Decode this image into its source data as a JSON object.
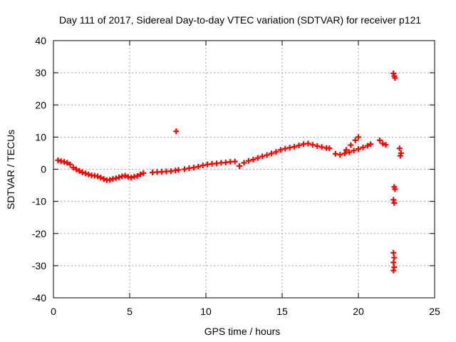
{
  "chart_data": {
    "type": "scatter",
    "title": "Day 111 of 2017, Sidereal Day-to-day VTEC variation (SDTVAR) for receiver p121",
    "xlabel": "GPS time / hours",
    "ylabel": "SDTVAR / TECUs",
    "xlim": [
      0,
      25
    ],
    "ylim": [
      -40,
      40
    ],
    "xticks": [
      0,
      5,
      10,
      15,
      20,
      25
    ],
    "yticks": [
      -40,
      -30,
      -20,
      -10,
      0,
      10,
      20,
      30,
      40
    ],
    "grid": true,
    "marker": "plus",
    "color": "#ff0000",
    "series": [
      {
        "name": "SDTVAR",
        "points": [
          [
            0.3,
            2.8
          ],
          [
            0.5,
            2.5
          ],
          [
            0.7,
            2.3
          ],
          [
            0.9,
            2.0
          ],
          [
            1.1,
            1.5
          ],
          [
            1.3,
            0.5
          ],
          [
            1.5,
            0.0
          ],
          [
            1.7,
            -0.5
          ],
          [
            1.9,
            -1.0
          ],
          [
            2.1,
            -1.3
          ],
          [
            2.3,
            -1.6
          ],
          [
            2.5,
            -1.9
          ],
          [
            2.7,
            -2.0
          ],
          [
            2.9,
            -2.2
          ],
          [
            3.1,
            -2.6
          ],
          [
            3.3,
            -3.0
          ],
          [
            3.5,
            -3.4
          ],
          [
            3.7,
            -3.3
          ],
          [
            3.9,
            -3.0
          ],
          [
            4.1,
            -2.8
          ],
          [
            4.3,
            -2.5
          ],
          [
            4.5,
            -2.2
          ],
          [
            4.7,
            -2.0
          ],
          [
            4.9,
            -2.4
          ],
          [
            5.1,
            -2.6
          ],
          [
            5.3,
            -2.3
          ],
          [
            5.5,
            -2.1
          ],
          [
            5.7,
            -1.6
          ],
          [
            5.9,
            -1.2
          ],
          [
            6.5,
            -1.0
          ],
          [
            6.8,
            -0.9
          ],
          [
            7.1,
            -0.8
          ],
          [
            7.4,
            -0.7
          ],
          [
            7.7,
            -0.6
          ],
          [
            8.0,
            -0.4
          ],
          [
            8.2,
            -0.2
          ],
          [
            8.05,
            11.8
          ],
          [
            8.6,
            0.0
          ],
          [
            8.9,
            0.3
          ],
          [
            9.2,
            0.5
          ],
          [
            9.5,
            0.8
          ],
          [
            9.8,
            1.2
          ],
          [
            10.1,
            1.5
          ],
          [
            10.4,
            1.7
          ],
          [
            10.7,
            1.8
          ],
          [
            11.0,
            2.0
          ],
          [
            11.3,
            2.1
          ],
          [
            11.6,
            2.3
          ],
          [
            11.9,
            2.4
          ],
          [
            12.2,
            1.0
          ],
          [
            12.5,
            2.0
          ],
          [
            12.8,
            2.6
          ],
          [
            13.1,
            3.0
          ],
          [
            13.4,
            3.5
          ],
          [
            13.7,
            4.0
          ],
          [
            14.0,
            4.4
          ],
          [
            14.3,
            4.9
          ],
          [
            14.6,
            5.4
          ],
          [
            14.9,
            6.0
          ],
          [
            15.2,
            6.4
          ],
          [
            15.5,
            6.7
          ],
          [
            15.8,
            7.0
          ],
          [
            16.1,
            7.4
          ],
          [
            16.4,
            7.8
          ],
          [
            16.7,
            8.0
          ],
          [
            17.0,
            7.6
          ],
          [
            17.3,
            7.2
          ],
          [
            17.6,
            6.9
          ],
          [
            17.9,
            6.6
          ],
          [
            18.1,
            6.5
          ],
          [
            18.5,
            4.8
          ],
          [
            18.8,
            4.5
          ],
          [
            19.1,
            4.9
          ],
          [
            19.4,
            5.3
          ],
          [
            19.7,
            5.8
          ],
          [
            20.0,
            6.3
          ],
          [
            20.3,
            6.8
          ],
          [
            20.6,
            7.3
          ],
          [
            20.8,
            7.8
          ],
          [
            19.2,
            6.0
          ],
          [
            19.5,
            7.5
          ],
          [
            19.8,
            9.0
          ],
          [
            20.0,
            10.0
          ],
          [
            21.4,
            9.0
          ],
          [
            21.6,
            8.0
          ],
          [
            21.8,
            7.6
          ],
          [
            22.3,
            29.8
          ],
          [
            22.35,
            29.0
          ],
          [
            22.4,
            28.4
          ],
          [
            22.35,
            -5.5
          ],
          [
            22.4,
            -6.2
          ],
          [
            22.3,
            -9.5
          ],
          [
            22.35,
            -10.5
          ],
          [
            22.3,
            -26.0
          ],
          [
            22.35,
            -27.5
          ],
          [
            22.3,
            -29.0
          ],
          [
            22.35,
            -30.5
          ],
          [
            22.3,
            -31.5
          ],
          [
            22.7,
            6.5
          ],
          [
            22.8,
            5.0
          ],
          [
            22.75,
            4.2
          ]
        ]
      }
    ]
  }
}
